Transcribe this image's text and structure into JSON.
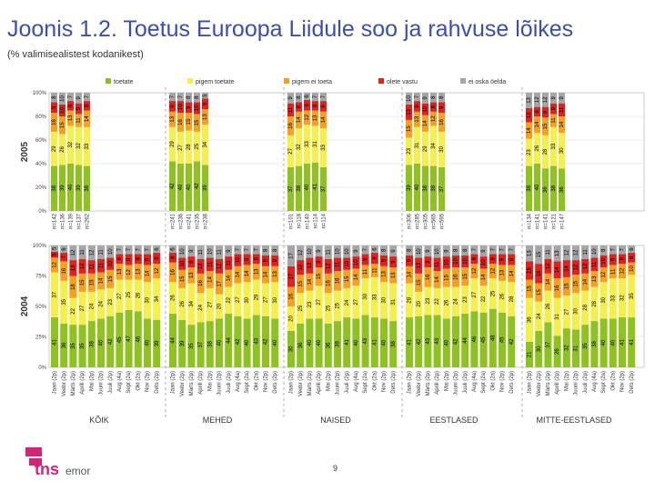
{
  "title": "Joonis 1.2. Toetus Euroopa Liidule soo ja rahvuse lõikes",
  "subtitle": "(% valimisealistest kodanikest)",
  "page_number": "9",
  "logo": {
    "text_tns": "tns",
    "text_emor": "emor"
  },
  "colors": {
    "toetab": "#8dc21f",
    "pigem_toetab": "#f5ef4a",
    "pigem_ei_toeta": "#f7a11a",
    "olete_vastu": "#e2211c",
    "ei_oska_oelda": "#a6a6a6",
    "title": "#3a4fa8",
    "logo": "#d4237a"
  },
  "chart_data": {
    "type": "bar",
    "stacked": true,
    "percent": true,
    "legend": [
      {
        "key": "toetab",
        "label": "toetate"
      },
      {
        "key": "pigem_toetab",
        "label": "pigem toetate"
      },
      {
        "key": "pigem_ei_toeta",
        "label": "pigem ei toeta"
      },
      {
        "key": "olete_vastu",
        "label": "olete vastu"
      },
      {
        "key": "ei_oska_oelda",
        "label": "ei oska öelda"
      }
    ],
    "rows": [
      {
        "label": "2005",
        "yticks": [
          "100%",
          "80%",
          "60%",
          "40%",
          "20%",
          "0%"
        ]
      },
      {
        "label": "2004",
        "yticks": [
          "100%",
          "75%",
          "50%",
          "25%",
          "0%"
        ]
      }
    ],
    "groups": [
      "KÕIK",
      "MEHED",
      "NAISED",
      "EESTLASED",
      "MITTE-EESTLASED"
    ],
    "months": [
      "Jaan (2p)",
      "Veebr (2p)",
      "Märts (2p)",
      "Aprill (2p)",
      "Mai (2p)",
      "Juuni (2p)",
      "Juuli (2p)",
      "Aug (4a)",
      "Sept (2a)",
      "Okt (2a)",
      "Nov (2p)",
      "Dets (2p)"
    ],
    "n_labels": [
      [
        "n=142",
        "n=136",
        "n=139",
        "n=137",
        "n=262"
      ],
      [
        "n=241",
        "n=236",
        "n=241",
        "n=235",
        "n=238"
      ],
      [
        "n=101",
        "n=118",
        "n=140",
        "n=114",
        "n=114"
      ],
      [
        "n=306",
        "n=285",
        "n=305",
        "n=565",
        "n=595"
      ],
      [
        "n=134",
        "n=141",
        "n=141",
        "n=121",
        "n=147"
      ]
    ],
    "bars_2005": [
      [
        [
          38,
          29,
          16,
          9,
          8
        ],
        [
          39,
          26,
          15,
          10,
          10
        ],
        [
          40,
          32,
          13,
          8,
          7
        ],
        [
          39,
          32,
          11,
          9,
          9
        ],
        [
          38,
          33,
          14,
          8,
          7
        ]
      ],
      [
        [
          42,
          29,
          13,
          9,
          7
        ],
        [
          40,
          27,
          16,
          10,
          7
        ],
        [
          40,
          28,
          15,
          9,
          8
        ],
        [
          42,
          25,
          15,
          10,
          8
        ],
        [
          39,
          34,
          13,
          9,
          5
        ]
      ],
      [
        [
          37,
          27,
          16,
          11,
          9
        ],
        [
          38,
          32,
          14,
          8,
          8
        ],
        [
          40,
          33,
          12,
          9,
          6
        ],
        [
          41,
          31,
          13,
          8,
          7
        ],
        [
          37,
          33,
          14,
          9,
          7
        ]
      ],
      [
        [
          39,
          23,
          15,
          13,
          10
        ],
        [
          40,
          31,
          13,
          9,
          7
        ],
        [
          38,
          29,
          14,
          10,
          9
        ],
        [
          38,
          34,
          12,
          8,
          8
        ],
        [
          37,
          30,
          16,
          9,
          8
        ]
      ],
      [
        [
          38,
          23,
          14,
          12,
          13
        ],
        [
          40,
          26,
          14,
          8,
          12
        ],
        [
          36,
          28,
          15,
          9,
          12
        ],
        [
          38,
          33,
          11,
          9,
          9
        ],
        [
          36,
          30,
          14,
          11,
          9
        ]
      ]
    ],
    "bars_2004": [
      [
        [
          41,
          37,
          12,
          5,
          5
        ],
        [
          36,
          35,
          16,
          7,
          6
        ],
        [
          35,
          22,
          18,
          13,
          12
        ],
        [
          35,
          27,
          15,
          12,
          11
        ],
        [
          38,
          24,
          15,
          11,
          12
        ],
        [
          40,
          24,
          14,
          11,
          11
        ],
        [
          42,
          23,
          15,
          10,
          10
        ],
        [
          45,
          27,
          13,
          8,
          7
        ],
        [
          47,
          25,
          12,
          9,
          7
        ],
        [
          46,
          26,
          13,
          8,
          7
        ],
        [
          40,
          30,
          14,
          9,
          7
        ],
        [
          39,
          34,
          12,
          9,
          6
        ]
      ],
      [
        [
          44,
          26,
          16,
          8,
          6
        ],
        [
          39,
          26,
          15,
          10,
          10
        ],
        [
          35,
          34,
          13,
          9,
          9
        ],
        [
          37,
          24,
          16,
          12,
          11
        ],
        [
          38,
          27,
          14,
          11,
          10
        ],
        [
          40,
          20,
          17,
          12,
          11
        ],
        [
          44,
          22,
          14,
          11,
          9
        ],
        [
          42,
          27,
          14,
          10,
          7
        ],
        [
          40,
          30,
          14,
          9,
          7
        ],
        [
          43,
          29,
          13,
          8,
          7
        ],
        [
          42,
          27,
          14,
          9,
          8
        ],
        [
          40,
          30,
          13,
          9,
          8
        ]
      ],
      [
        [
          30,
          20,
          16,
          17,
          17
        ],
        [
          36,
          25,
          15,
          12,
          12
        ],
        [
          40,
          23,
          14,
          13,
          10
        ],
        [
          40,
          27,
          15,
          9,
          9
        ],
        [
          36,
          25,
          16,
          12,
          11
        ],
        [
          38,
          25,
          16,
          11,
          10
        ],
        [
          41,
          24,
          15,
          10,
          10
        ],
        [
          40,
          27,
          14,
          10,
          9
        ],
        [
          43,
          30,
          11,
          9,
          7
        ],
        [
          41,
          33,
          11,
          9,
          6
        ],
        [
          40,
          30,
          13,
          9,
          8
        ],
        [
          38,
          31,
          13,
          9,
          9
        ]
      ],
      [
        [
          41,
          28,
          14,
          9,
          8
        ],
        [
          42,
          20,
          15,
          13,
          10
        ],
        [
          43,
          23,
          16,
          9,
          9
        ],
        [
          43,
          22,
          14,
          11,
          10
        ],
        [
          40,
          26,
          15,
          10,
          9
        ],
        [
          42,
          24,
          16,
          10,
          8
        ],
        [
          44,
          23,
          15,
          10,
          8
        ],
        [
          46,
          27,
          12,
          8,
          7
        ],
        [
          45,
          22,
          14,
          10,
          9
        ],
        [
          48,
          25,
          12,
          8,
          7
        ],
        [
          45,
          26,
          13,
          9,
          7
        ],
        [
          42,
          28,
          14,
          9,
          7
        ]
      ],
      [
        [
          21,
          36,
          15,
          15,
          13
        ],
        [
          30,
          24,
          15,
          16,
          15
        ],
        [
          37,
          26,
          14,
          12,
          11
        ],
        [
          26,
          31,
          16,
          14,
          13
        ],
        [
          32,
          27,
          15,
          14,
          12
        ],
        [
          31,
          30,
          15,
          12,
          12
        ],
        [
          35,
          28,
          14,
          12,
          11
        ],
        [
          38,
          28,
          13,
          11,
          10
        ],
        [
          40,
          30,
          12,
          10,
          8
        ],
        [
          40,
          33,
          11,
          9,
          7
        ],
        [
          41,
          32,
          12,
          8,
          7
        ],
        [
          41,
          35,
          10,
          8,
          6
        ]
      ]
    ]
  }
}
